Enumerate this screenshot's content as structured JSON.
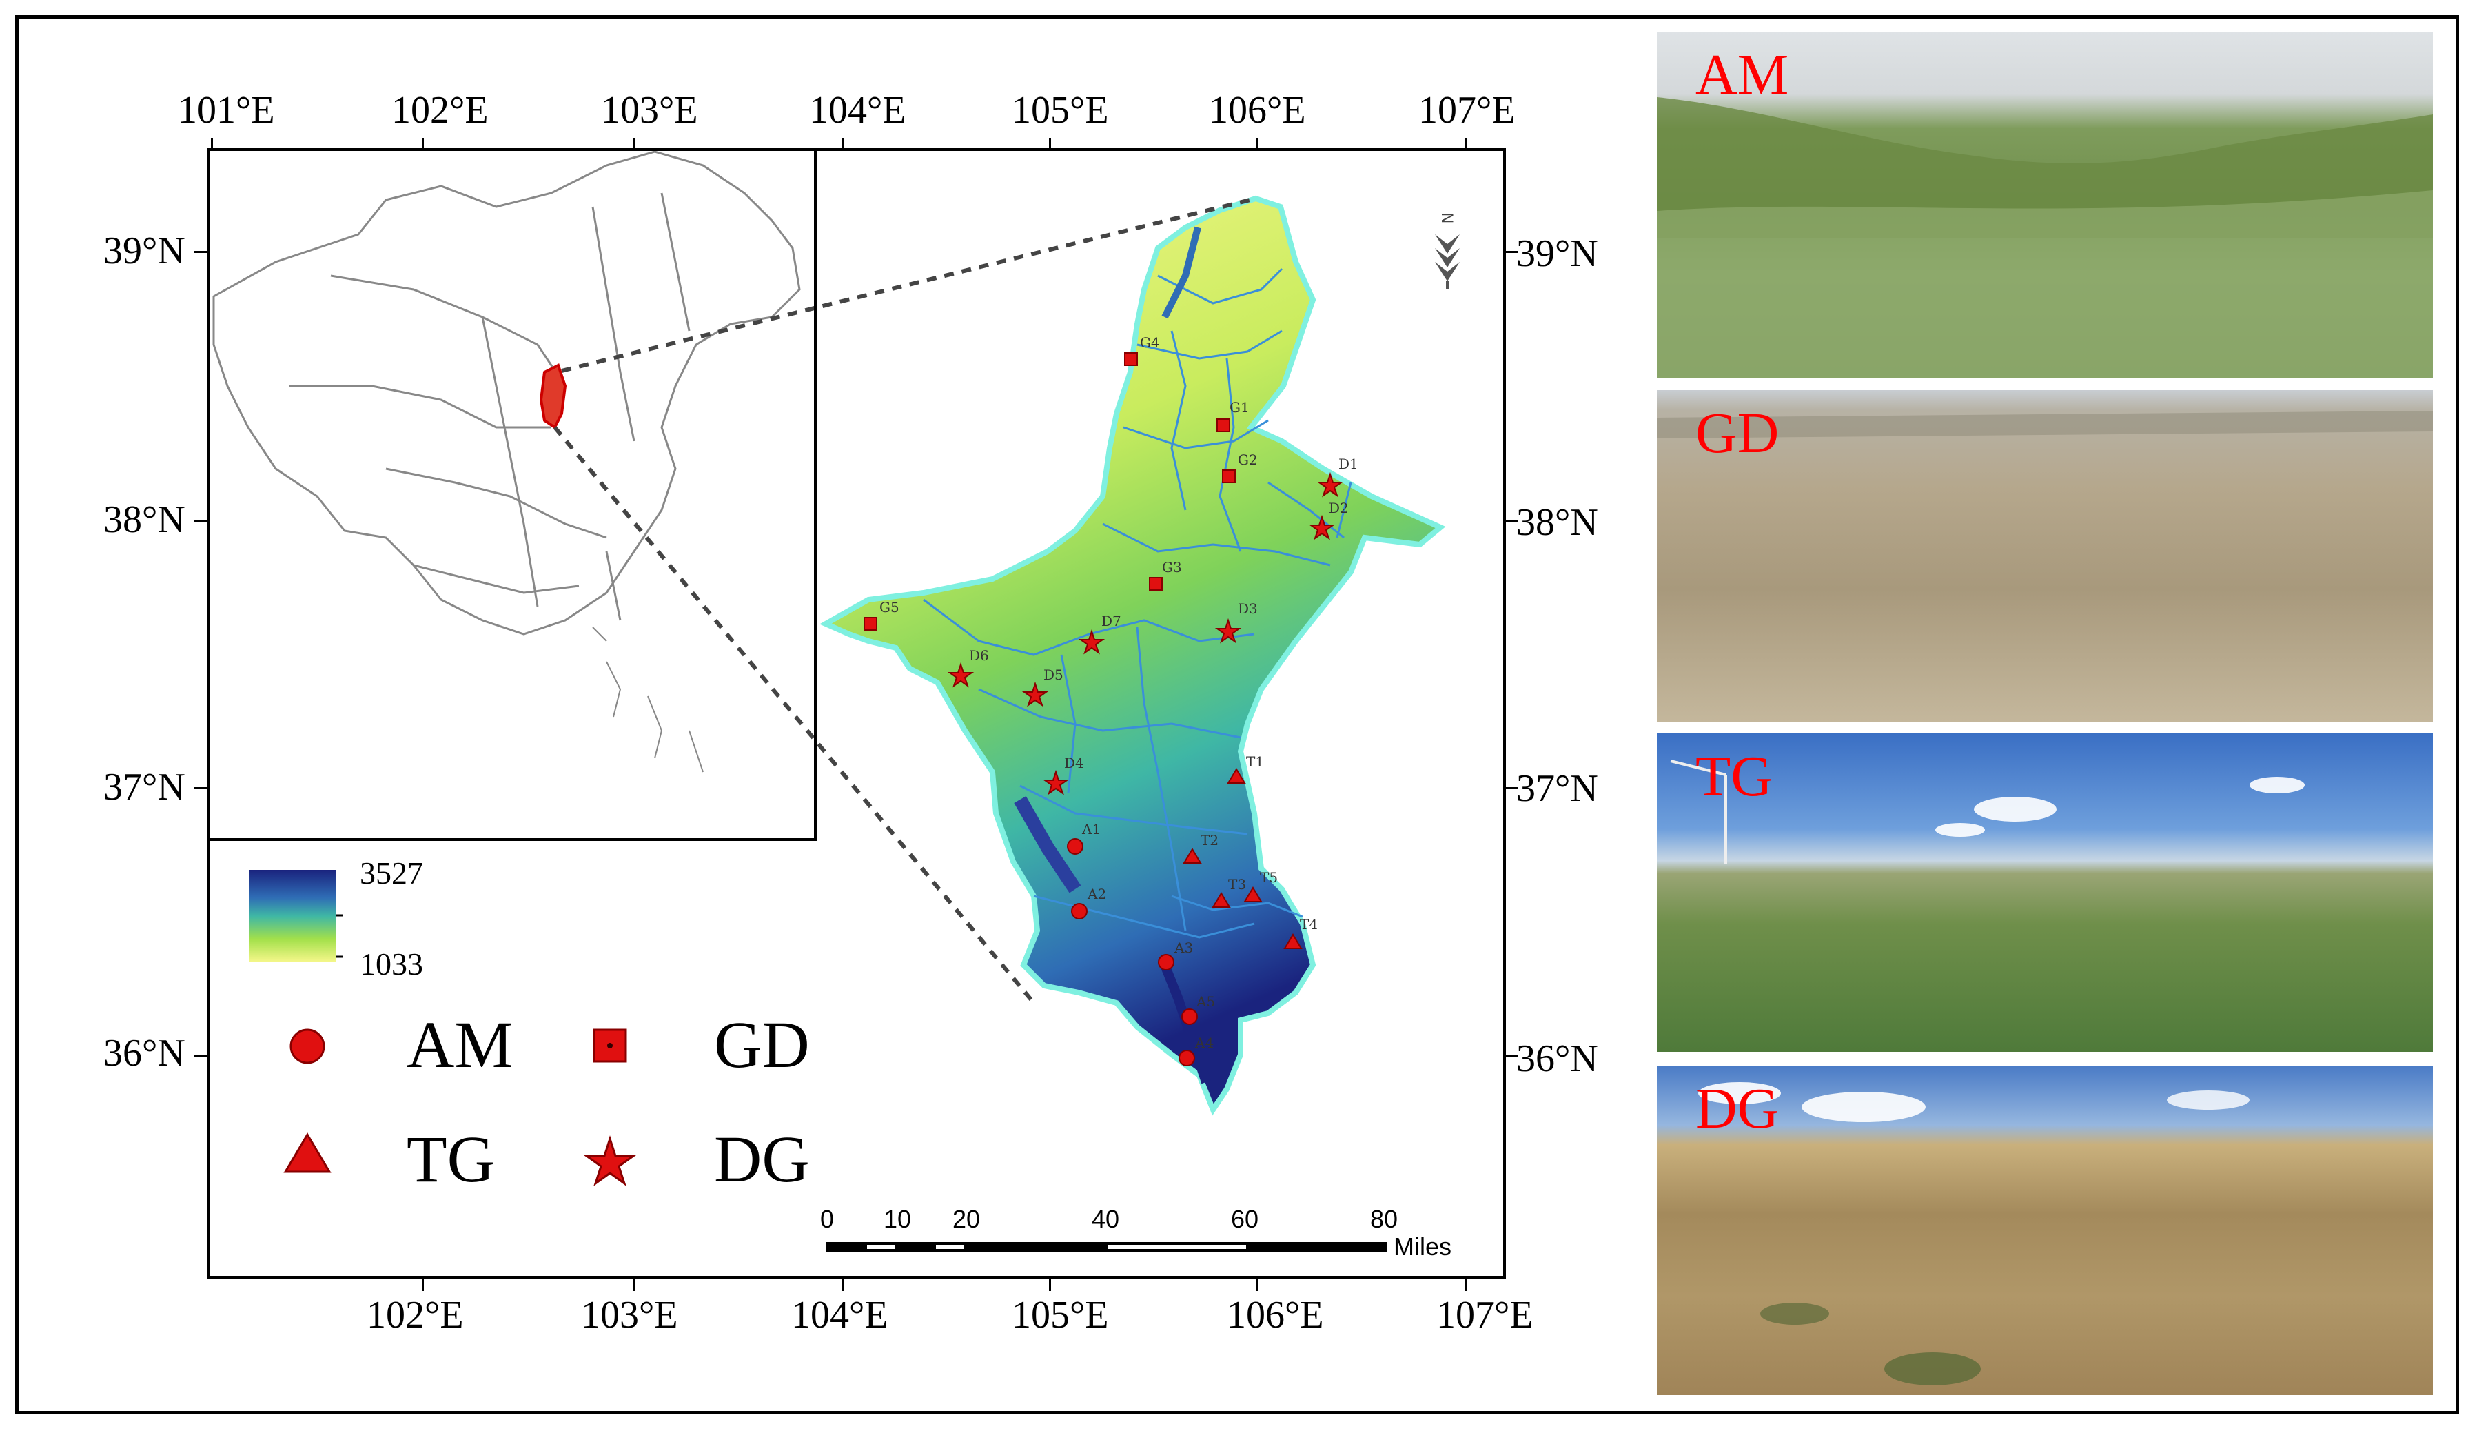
{
  "axes": {
    "top_lon": [
      "101°E",
      "102°E",
      "103°E",
      "104°E",
      "105°E",
      "106°E",
      "107°E"
    ],
    "bottom_lon": [
      "102°E",
      "103°E",
      "104°E",
      "105°E",
      "106°E",
      "107°E"
    ],
    "left_lat": [
      "39°N",
      "38°N",
      "37°N",
      "36°N"
    ],
    "right_lat": [
      "39°N",
      "38°N",
      "37°N",
      "36°N"
    ]
  },
  "colorbar": {
    "max": "3527",
    "min": "1033",
    "colors": [
      "#1a237e",
      "#2f6db5",
      "#3fb7a5",
      "#a3e04a",
      "#f6f78b"
    ]
  },
  "legend": {
    "am": "AM",
    "gd": "GD",
    "tg": "TG",
    "dg": "DG",
    "marker_color": "#e01010"
  },
  "scale_bar": {
    "ticks": [
      "0",
      "10",
      "20",
      "40",
      "60",
      "80"
    ],
    "unit": "Miles"
  },
  "sites": {
    "A1": "A1",
    "A2": "A2",
    "A3": "A3",
    "A4": "A4",
    "A5": "A5",
    "G1": "G1",
    "G2": "G2",
    "G3": "G3",
    "G4": "G4",
    "G5": "G5",
    "T1": "T1",
    "T2": "T2",
    "T3": "T3",
    "T4": "T4",
    "T5": "T5",
    "D1": "D1",
    "D2": "D2",
    "D3": "D3",
    "D4": "D4",
    "D5": "D5",
    "D6": "D6",
    "D7": "D7"
  },
  "north_arrow": "N",
  "photos": [
    {
      "label": "AM"
    },
    {
      "label": "GD"
    },
    {
      "label": "TG"
    },
    {
      "label": "DG"
    }
  ]
}
